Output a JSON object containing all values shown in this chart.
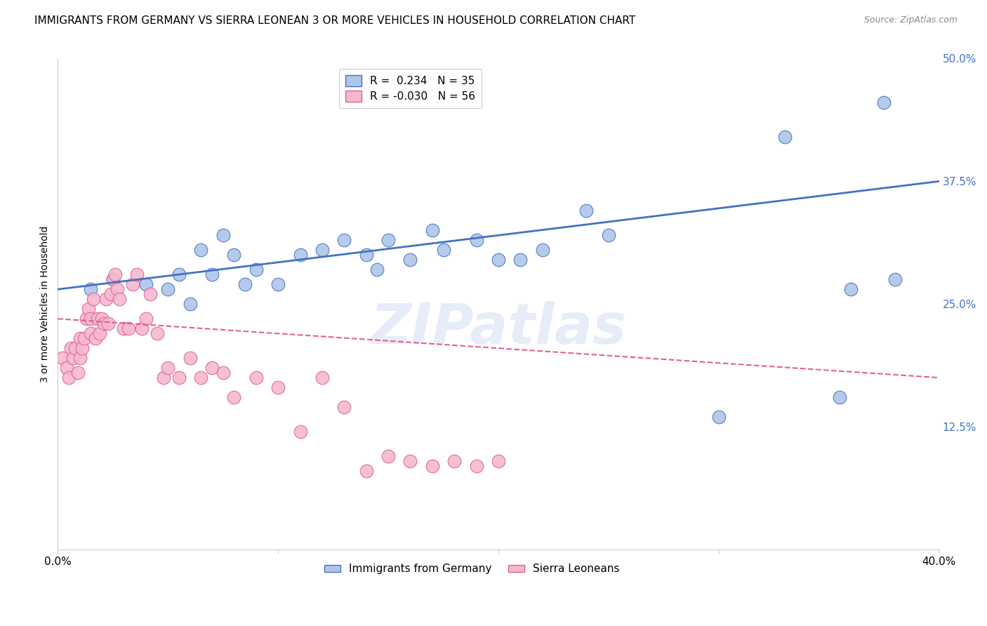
{
  "title": "IMMIGRANTS FROM GERMANY VS SIERRA LEONEAN 3 OR MORE VEHICLES IN HOUSEHOLD CORRELATION CHART",
  "source": "Source: ZipAtlas.com",
  "ylabel": "3 or more Vehicles in Household",
  "x_min": 0.0,
  "x_max": 0.4,
  "y_min": 0.0,
  "y_max": 0.5,
  "x_ticks": [
    0.0,
    0.1,
    0.2,
    0.3,
    0.4
  ],
  "x_tick_labels": [
    "0.0%",
    "",
    "",
    "",
    "40.0%"
  ],
  "y_tick_labels": [
    "12.5%",
    "25.0%",
    "37.5%",
    "50.0%"
  ],
  "y_ticks": [
    0.125,
    0.25,
    0.375,
    0.5
  ],
  "watermark": "ZIPatlas",
  "blue_scatter_x": [
    0.015,
    0.025,
    0.04,
    0.05,
    0.055,
    0.06,
    0.065,
    0.07,
    0.075,
    0.08,
    0.085,
    0.09,
    0.1,
    0.11,
    0.12,
    0.13,
    0.14,
    0.145,
    0.15,
    0.16,
    0.17,
    0.175,
    0.19,
    0.2,
    0.21,
    0.22,
    0.24,
    0.25,
    0.3,
    0.33,
    0.355,
    0.36,
    0.375,
    0.38
  ],
  "blue_scatter_y": [
    0.265,
    0.275,
    0.27,
    0.265,
    0.28,
    0.25,
    0.305,
    0.28,
    0.32,
    0.3,
    0.27,
    0.285,
    0.27,
    0.3,
    0.305,
    0.315,
    0.3,
    0.285,
    0.315,
    0.295,
    0.325,
    0.305,
    0.315,
    0.295,
    0.295,
    0.305,
    0.345,
    0.32,
    0.135,
    0.42,
    0.155,
    0.265,
    0.455,
    0.275
  ],
  "pink_scatter_x": [
    0.002,
    0.004,
    0.005,
    0.006,
    0.007,
    0.008,
    0.009,
    0.01,
    0.01,
    0.011,
    0.012,
    0.013,
    0.014,
    0.015,
    0.015,
    0.016,
    0.017,
    0.018,
    0.019,
    0.02,
    0.021,
    0.022,
    0.023,
    0.024,
    0.025,
    0.026,
    0.027,
    0.028,
    0.03,
    0.032,
    0.034,
    0.036,
    0.038,
    0.04,
    0.042,
    0.045,
    0.048,
    0.05,
    0.055,
    0.06,
    0.065,
    0.07,
    0.075,
    0.08,
    0.09,
    0.1,
    0.11,
    0.12,
    0.13,
    0.14,
    0.15,
    0.16,
    0.17,
    0.18,
    0.19,
    0.2
  ],
  "pink_scatter_y": [
    0.195,
    0.185,
    0.175,
    0.205,
    0.195,
    0.205,
    0.18,
    0.195,
    0.215,
    0.205,
    0.215,
    0.235,
    0.245,
    0.22,
    0.235,
    0.255,
    0.215,
    0.235,
    0.22,
    0.235,
    0.23,
    0.255,
    0.23,
    0.26,
    0.275,
    0.28,
    0.265,
    0.255,
    0.225,
    0.225,
    0.27,
    0.28,
    0.225,
    0.235,
    0.26,
    0.22,
    0.175,
    0.185,
    0.175,
    0.195,
    0.175,
    0.185,
    0.18,
    0.155,
    0.175,
    0.165,
    0.12,
    0.175,
    0.145,
    0.08,
    0.095,
    0.09,
    0.085,
    0.09,
    0.085,
    0.09
  ],
  "blue_line_x0": 0.0,
  "blue_line_y0": 0.265,
  "blue_line_x1": 0.4,
  "blue_line_y1": 0.375,
  "pink_line_x0": 0.0,
  "pink_line_y0": 0.235,
  "pink_line_x1": 0.4,
  "pink_line_y1": 0.175,
  "blue_line_color": "#4472c4",
  "pink_line_color": "#e06090",
  "scatter_blue_color": "#aec6e8",
  "scatter_pink_color": "#f5b8d0",
  "grid_color": "#cccccc",
  "background_color": "#ffffff",
  "title_fontsize": 11,
  "axis_label_fontsize": 10,
  "tick_fontsize": 11,
  "right_tick_color": "#4472c4",
  "source_color": "#888888"
}
